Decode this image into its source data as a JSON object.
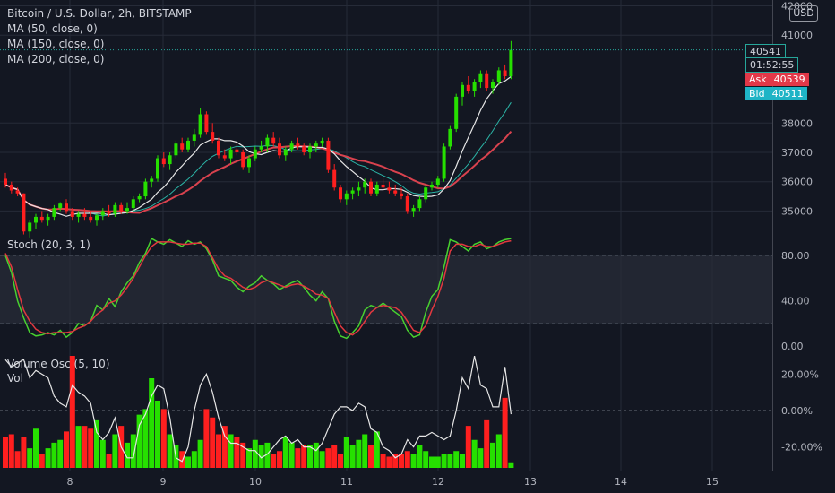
{
  "header": {
    "title": "Bitcoin / U.S. Dollar, 2h, BITSTAMP",
    "ma_labels": [
      "MA (50, close, 0)",
      "MA (150, close, 0)",
      "MA (200, close, 0)"
    ],
    "currency_button": "USD"
  },
  "price_tags": {
    "last": "40541",
    "countdown": "01:52:55",
    "ask_label": "Ask",
    "ask_value": "40539",
    "bid_label": "Bid",
    "bid_value": "40511"
  },
  "stoch": {
    "label": "Stoch (20, 3, 1)"
  },
  "volume": {
    "label": "Volume Osc (5, 10)",
    "vol_label": "Vol"
  },
  "colors": {
    "up": "#26e000",
    "down": "#ff1f1f",
    "ma50": "#e6e6e6",
    "ma150": "#2bb3a5",
    "ma200": "#d9424e",
    "stoch_k": "#48d12f",
    "stoch_d": "#e2383f",
    "osc": "#e6e6e6"
  },
  "chart_data": [
    {
      "type": "candlestick",
      "y_ticks": [
        "35000",
        "36000",
        "37000",
        "38000",
        "41000",
        "42000"
      ],
      "x_ticks": [
        "8",
        "9",
        "10",
        "11",
        "12",
        "13",
        "14",
        "15"
      ],
      "ylim": [
        34400,
        42200
      ],
      "candles": [
        [
          36100,
          36300,
          35800,
          35900
        ],
        [
          35900,
          36000,
          35600,
          35700
        ],
        [
          35700,
          35800,
          35500,
          35600
        ],
        [
          35600,
          35600,
          34200,
          34300
        ],
        [
          34300,
          34700,
          34100,
          34600
        ],
        [
          34600,
          34900,
          34400,
          34800
        ],
        [
          34800,
          35000,
          34600,
          34700
        ],
        [
          34700,
          34900,
          34500,
          34800
        ],
        [
          34800,
          35200,
          34700,
          35100
        ],
        [
          35100,
          35300,
          35000,
          35250
        ],
        [
          35250,
          35400,
          34900,
          35000
        ],
        [
          35000,
          35100,
          34700,
          34800
        ],
        [
          34800,
          35000,
          34600,
          34900
        ],
        [
          34900,
          35100,
          34700,
          34800
        ],
        [
          34800,
          35000,
          34600,
          34700
        ],
        [
          34700,
          34900,
          34500,
          34850
        ],
        [
          34850,
          35100,
          34700,
          35000
        ],
        [
          35000,
          35200,
          34800,
          34900
        ],
        [
          34900,
          35300,
          34800,
          35200
        ],
        [
          35200,
          35300,
          34900,
          35000
        ],
        [
          35000,
          35300,
          34900,
          35100
        ],
        [
          35100,
          35500,
          35000,
          35400
        ],
        [
          35400,
          35600,
          35300,
          35500
        ],
        [
          35500,
          36100,
          35400,
          36000
        ],
        [
          36000,
          36200,
          35800,
          36100
        ],
        [
          36100,
          36900,
          36000,
          36800
        ],
        [
          36800,
          37000,
          36500,
          36600
        ],
        [
          36600,
          37000,
          36400,
          36900
        ],
        [
          36900,
          37400,
          36800,
          37300
        ],
        [
          37300,
          37500,
          37000,
          37100
        ],
        [
          37100,
          37500,
          37000,
          37400
        ],
        [
          37400,
          37800,
          37200,
          37600
        ],
        [
          37600,
          38500,
          37500,
          38300
        ],
        [
          38300,
          38400,
          37600,
          37700
        ],
        [
          37700,
          38000,
          37300,
          37400
        ],
        [
          37400,
          37500,
          36800,
          36900
        ],
        [
          36900,
          37100,
          36700,
          36800
        ],
        [
          36800,
          37200,
          36600,
          37100
        ],
        [
          37100,
          37300,
          36900,
          37000
        ],
        [
          37000,
          37100,
          36400,
          36500
        ],
        [
          36500,
          36900,
          36300,
          36800
        ],
        [
          36800,
          37200,
          36700,
          37100
        ],
        [
          37100,
          37400,
          37000,
          37200
        ],
        [
          37200,
          37600,
          37000,
          37500
        ],
        [
          37500,
          37700,
          37200,
          37300
        ],
        [
          37300,
          37500,
          36800,
          36900
        ],
        [
          36900,
          37200,
          36700,
          37100
        ],
        [
          37100,
          37400,
          37000,
          37300
        ],
        [
          37300,
          37500,
          37100,
          37200
        ],
        [
          37200,
          37300,
          36900,
          37000
        ],
        [
          37000,
          37300,
          36800,
          37200
        ],
        [
          37200,
          37400,
          37000,
          37300
        ],
        [
          37300,
          37500,
          37200,
          37400
        ],
        [
          37400,
          37500,
          36300,
          36400
        ],
        [
          36400,
          36600,
          35700,
          35800
        ],
        [
          35800,
          35900,
          35300,
          35400
        ],
        [
          35400,
          35700,
          35200,
          35600
        ],
        [
          35600,
          35800,
          35400,
          35700
        ],
        [
          35700,
          36000,
          35500,
          35800
        ],
        [
          35800,
          36100,
          35600,
          36000
        ],
        [
          36000,
          36100,
          35500,
          35600
        ],
        [
          35600,
          36000,
          35500,
          35900
        ],
        [
          35900,
          36100,
          35700,
          35800
        ],
        [
          35800,
          36000,
          35600,
          35700
        ],
        [
          35700,
          35900,
          35500,
          35600
        ],
        [
          35600,
          35800,
          35400,
          35500
        ],
        [
          35500,
          35600,
          34900,
          35000
        ],
        [
          35000,
          35200,
          34800,
          35100
        ],
        [
          35100,
          35500,
          35000,
          35400
        ],
        [
          35400,
          35900,
          35300,
          35800
        ],
        [
          35800,
          36000,
          35700,
          35900
        ],
        [
          35900,
          36200,
          35800,
          36100
        ],
        [
          36100,
          37300,
          36000,
          37200
        ],
        [
          37200,
          37900,
          37100,
          37800
        ],
        [
          37800,
          39000,
          37700,
          38900
        ],
        [
          38900,
          39400,
          38600,
          39300
        ],
        [
          39300,
          39600,
          39000,
          39100
        ],
        [
          39100,
          39500,
          38900,
          39400
        ],
        [
          39400,
          39800,
          39200,
          39700
        ],
        [
          39700,
          39800,
          39100,
          39200
        ],
        [
          39200,
          39500,
          39000,
          39400
        ],
        [
          39400,
          39900,
          39300,
          39800
        ],
        [
          39800,
          40000,
          39500,
          39600
        ],
        [
          39600,
          40800,
          39500,
          40500
        ]
      ]
    },
    {
      "type": "line",
      "name": "Stoch (20, 3, 1)",
      "y_ticks": [
        "0.00",
        "40.00",
        "80.00"
      ],
      "ylim": [
        -3,
        103
      ],
      "band": [
        20,
        80
      ],
      "k": [
        80,
        65,
        40,
        25,
        12,
        9,
        10,
        12,
        10,
        14,
        8,
        12,
        20,
        18,
        22,
        36,
        32,
        42,
        35,
        48,
        56,
        62,
        74,
        82,
        95,
        92,
        90,
        94,
        91,
        88,
        93,
        90,
        92,
        86,
        76,
        62,
        60,
        58,
        52,
        48,
        53,
        56,
        62,
        58,
        55,
        50,
        53,
        56,
        58,
        52,
        45,
        40,
        48,
        42,
        22,
        9,
        7,
        12,
        18,
        32,
        36,
        34,
        38,
        34,
        30,
        26,
        14,
        8,
        10,
        30,
        44,
        50,
        70,
        94,
        92,
        88,
        84,
        90,
        92,
        86,
        88,
        92,
        94,
        95
      ],
      "d": [
        82,
        70,
        50,
        32,
        22,
        15,
        12,
        11,
        12,
        12,
        12,
        13,
        16,
        18,
        22,
        28,
        32,
        38,
        40,
        45,
        52,
        60,
        70,
        80,
        88,
        92,
        92,
        92,
        91,
        90,
        90,
        91,
        91,
        88,
        78,
        68,
        62,
        60,
        56,
        52,
        50,
        52,
        56,
        58,
        56,
        54,
        52,
        54,
        55,
        53,
        50,
        46,
        45,
        42,
        30,
        18,
        12,
        10,
        14,
        22,
        30,
        34,
        36,
        35,
        34,
        30,
        22,
        14,
        12,
        18,
        32,
        44,
        60,
        84,
        90,
        90,
        88,
        88,
        90,
        88,
        88,
        90,
        92,
        93
      ]
    },
    {
      "type": "bar+line",
      "name": "Volume Osc (5, 10)",
      "y_ticks": [
        "20.00%",
        "0.00%",
        "-20.00%"
      ],
      "ylim": [
        -33,
        33
      ],
      "volume": [
        22,
        24,
        12,
        22,
        14,
        28,
        10,
        14,
        18,
        20,
        26,
        80,
        30,
        30,
        28,
        34,
        20,
        10,
        24,
        30,
        18,
        24,
        38,
        42,
        64,
        48,
        42,
        24,
        16,
        12,
        8,
        12,
        20,
        42,
        36,
        24,
        30,
        24,
        22,
        18,
        14,
        20,
        16,
        18,
        10,
        12,
        22,
        18,
        14,
        16,
        16,
        18,
        12,
        14,
        16,
        10,
        22,
        16,
        20,
        24,
        16,
        26,
        10,
        8,
        10,
        10,
        12,
        10,
        16,
        12,
        8,
        8,
        10,
        10,
        12,
        10,
        30,
        20,
        14,
        34,
        18,
        24,
        50,
        4
      ],
      "osc": [
        28,
        24,
        26,
        28,
        18,
        22,
        20,
        18,
        8,
        4,
        2,
        14,
        10,
        8,
        4,
        -12,
        -16,
        -12,
        -4,
        -20,
        -26,
        -26,
        -8,
        -2,
        8,
        14,
        12,
        -4,
        -26,
        -28,
        -20,
        0,
        14,
        20,
        10,
        -4,
        -14,
        -18,
        -18,
        -20,
        -22,
        -22,
        -26,
        -24,
        -20,
        -16,
        -14,
        -18,
        -16,
        -20,
        -20,
        -22,
        -18,
        -10,
        -2,
        2,
        2,
        0,
        4,
        2,
        -10,
        -12,
        -20,
        -22,
        -26,
        -24,
        -16,
        -20,
        -14,
        -14,
        -12,
        -14,
        -16,
        -14,
        0,
        18,
        12,
        30,
        14,
        12,
        2,
        2,
        24,
        -2
      ]
    }
  ]
}
